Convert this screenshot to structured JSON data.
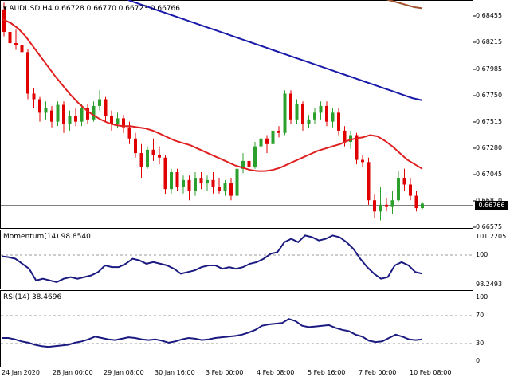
{
  "header": {
    "symbol_line": "AUDUSD,H4  0.66728 0.66770 0.66723 0.66766"
  },
  "price_scale": [
    "0.68455",
    "0.68215",
    "0.67985",
    "0.67750",
    "0.67515",
    "0.67280",
    "0.67045",
    "0.66810",
    "0.66575"
  ],
  "current_price": "0.66766",
  "momentum": {
    "label": "Momentum(14) 98.8540",
    "scale_top": "101.2205",
    "scale_mid": "100",
    "scale_bottom": "98.2493"
  },
  "rsi": {
    "label": "RSI(14) 38.4696",
    "scale_100": "100",
    "scale_70": "70",
    "scale_30": "30",
    "scale_0": "0"
  },
  "x_axis": [
    "24 Jan 2020",
    "28 Jan 00:00",
    "29 Jan 08:00",
    "30 Jan 16:00",
    "3 Feb 00:00",
    "4 Feb 08:00",
    "5 Feb 16:00",
    "7 Feb 00:00",
    "10 Feb 08:00"
  ],
  "colors": {
    "bull": "#2ca02c",
    "bear": "#e00000",
    "ma_fast": "#e02020",
    "ma_slow": "#1a1aaa",
    "ma_long": "#a0522d",
    "indicator": "#1a1a80"
  },
  "chart_data": {
    "type": "candlestick",
    "ylim": [
      0.6656,
      0.6857
    ],
    "candles": [
      {
        "o": 0.685,
        "h": 0.6856,
        "l": 0.6826,
        "c": 0.683
      },
      {
        "o": 0.683,
        "h": 0.6838,
        "l": 0.6812,
        "c": 0.682
      },
      {
        "o": 0.682,
        "h": 0.6832,
        "l": 0.6814,
        "c": 0.6818
      },
      {
        "o": 0.6818,
        "h": 0.6822,
        "l": 0.6805,
        "c": 0.6812
      },
      {
        "o": 0.6812,
        "h": 0.6815,
        "l": 0.677,
        "c": 0.6775
      },
      {
        "o": 0.6775,
        "h": 0.678,
        "l": 0.6762,
        "c": 0.677
      },
      {
        "o": 0.677,
        "h": 0.6772,
        "l": 0.675,
        "c": 0.6758
      },
      {
        "o": 0.6758,
        "h": 0.6768,
        "l": 0.6752,
        "c": 0.6762
      },
      {
        "o": 0.676,
        "h": 0.6764,
        "l": 0.6745,
        "c": 0.675
      },
      {
        "o": 0.675,
        "h": 0.6768,
        "l": 0.6746,
        "c": 0.6765
      },
      {
        "o": 0.6765,
        "h": 0.6768,
        "l": 0.674,
        "c": 0.6748
      },
      {
        "o": 0.6748,
        "h": 0.676,
        "l": 0.6742,
        "c": 0.6755
      },
      {
        "o": 0.6755,
        "h": 0.6762,
        "l": 0.6746,
        "c": 0.675
      },
      {
        "o": 0.675,
        "h": 0.6766,
        "l": 0.6746,
        "c": 0.6762
      },
      {
        "o": 0.6762,
        "h": 0.6766,
        "l": 0.6748,
        "c": 0.6752
      },
      {
        "o": 0.6752,
        "h": 0.6768,
        "l": 0.675,
        "c": 0.6764
      },
      {
        "o": 0.6764,
        "h": 0.6778,
        "l": 0.676,
        "c": 0.677
      },
      {
        "o": 0.677,
        "h": 0.6772,
        "l": 0.675,
        "c": 0.6755
      },
      {
        "o": 0.6755,
        "h": 0.676,
        "l": 0.6742,
        "c": 0.6748
      },
      {
        "o": 0.6748,
        "h": 0.6758,
        "l": 0.6744,
        "c": 0.6753
      },
      {
        "o": 0.6753,
        "h": 0.6756,
        "l": 0.674,
        "c": 0.6745
      },
      {
        "o": 0.6745,
        "h": 0.675,
        "l": 0.673,
        "c": 0.6735
      },
      {
        "o": 0.6735,
        "h": 0.674,
        "l": 0.6718,
        "c": 0.6722
      },
      {
        "o": 0.6722,
        "h": 0.673,
        "l": 0.67,
        "c": 0.671
      },
      {
        "o": 0.671,
        "h": 0.6728,
        "l": 0.6708,
        "c": 0.6725
      },
      {
        "o": 0.6725,
        "h": 0.6735,
        "l": 0.6715,
        "c": 0.672
      },
      {
        "o": 0.672,
        "h": 0.6728,
        "l": 0.6712,
        "c": 0.6718
      },
      {
        "o": 0.6718,
        "h": 0.672,
        "l": 0.6685,
        "c": 0.669
      },
      {
        "o": 0.669,
        "h": 0.6708,
        "l": 0.6686,
        "c": 0.6705
      },
      {
        "o": 0.6705,
        "h": 0.6708,
        "l": 0.6688,
        "c": 0.6692
      },
      {
        "o": 0.6692,
        "h": 0.6702,
        "l": 0.6686,
        "c": 0.6698
      },
      {
        "o": 0.6698,
        "h": 0.6702,
        "l": 0.668,
        "c": 0.6688
      },
      {
        "o": 0.6688,
        "h": 0.6705,
        "l": 0.6684,
        "c": 0.67
      },
      {
        "o": 0.67,
        "h": 0.6705,
        "l": 0.669,
        "c": 0.6695
      },
      {
        "o": 0.6695,
        "h": 0.6702,
        "l": 0.6688,
        "c": 0.6698
      },
      {
        "o": 0.6698,
        "h": 0.6705,
        "l": 0.6686,
        "c": 0.6692
      },
      {
        "o": 0.6692,
        "h": 0.67,
        "l": 0.6686,
        "c": 0.6688
      },
      {
        "o": 0.6688,
        "h": 0.6698,
        "l": 0.6684,
        "c": 0.6695
      },
      {
        "o": 0.6695,
        "h": 0.67,
        "l": 0.668,
        "c": 0.6684
      },
      {
        "o": 0.6684,
        "h": 0.6712,
        "l": 0.6682,
        "c": 0.6708
      },
      {
        "o": 0.6708,
        "h": 0.6722,
        "l": 0.6704,
        "c": 0.6715
      },
      {
        "o": 0.6715,
        "h": 0.6722,
        "l": 0.6706,
        "c": 0.671
      },
      {
        "o": 0.671,
        "h": 0.6732,
        "l": 0.6708,
        "c": 0.6728
      },
      {
        "o": 0.6728,
        "h": 0.674,
        "l": 0.6724,
        "c": 0.6735
      },
      {
        "o": 0.6735,
        "h": 0.6738,
        "l": 0.6722,
        "c": 0.673
      },
      {
        "o": 0.673,
        "h": 0.6745,
        "l": 0.6728,
        "c": 0.6742
      },
      {
        "o": 0.6742,
        "h": 0.6746,
        "l": 0.6736,
        "c": 0.674
      },
      {
        "o": 0.674,
        "h": 0.6778,
        "l": 0.6738,
        "c": 0.6775
      },
      {
        "o": 0.6775,
        "h": 0.6778,
        "l": 0.6748,
        "c": 0.6752
      },
      {
        "o": 0.6752,
        "h": 0.677,
        "l": 0.6748,
        "c": 0.6766
      },
      {
        "o": 0.6766,
        "h": 0.6768,
        "l": 0.6742,
        "c": 0.6748
      },
      {
        "o": 0.6748,
        "h": 0.6756,
        "l": 0.6744,
        "c": 0.6752
      },
      {
        "o": 0.6752,
        "h": 0.6762,
        "l": 0.6748,
        "c": 0.6758
      },
      {
        "o": 0.6758,
        "h": 0.6768,
        "l": 0.6752,
        "c": 0.6764
      },
      {
        "o": 0.6764,
        "h": 0.6768,
        "l": 0.6746,
        "c": 0.675
      },
      {
        "o": 0.675,
        "h": 0.6762,
        "l": 0.6745,
        "c": 0.6758
      },
      {
        "o": 0.6758,
        "h": 0.6762,
        "l": 0.6738,
        "c": 0.6742
      },
      {
        "o": 0.6742,
        "h": 0.6746,
        "l": 0.6728,
        "c": 0.6732
      },
      {
        "o": 0.6732,
        "h": 0.6742,
        "l": 0.6726,
        "c": 0.6738
      },
      {
        "o": 0.6738,
        "h": 0.674,
        "l": 0.6712,
        "c": 0.6716
      },
      {
        "o": 0.6716,
        "h": 0.672,
        "l": 0.671,
        "c": 0.6714
      },
      {
        "o": 0.6714,
        "h": 0.6718,
        "l": 0.6676,
        "c": 0.668
      },
      {
        "o": 0.668,
        "h": 0.6685,
        "l": 0.6664,
        "c": 0.667
      },
      {
        "o": 0.667,
        "h": 0.6692,
        "l": 0.6662,
        "c": 0.6676
      },
      {
        "o": 0.6676,
        "h": 0.6682,
        "l": 0.667,
        "c": 0.6674
      },
      {
        "o": 0.6674,
        "h": 0.6688,
        "l": 0.6668,
        "c": 0.668
      },
      {
        "o": 0.668,
        "h": 0.6706,
        "l": 0.6678,
        "c": 0.67
      },
      {
        "o": 0.67,
        "h": 0.6708,
        "l": 0.6688,
        "c": 0.6694
      },
      {
        "o": 0.6694,
        "h": 0.67,
        "l": 0.668,
        "c": 0.6684
      },
      {
        "o": 0.6684,
        "h": 0.6688,
        "l": 0.667,
        "c": 0.6673
      },
      {
        "o": 0.6673,
        "h": 0.6678,
        "l": 0.6672,
        "c": 0.6677
      }
    ],
    "ma_fast": [
      0.6841,
      0.6838,
      0.6833,
      0.6826,
      0.6817,
      0.6808,
      0.6799,
      0.679,
      0.6782,
      0.6774,
      0.6767,
      0.6761,
      0.6756,
      0.6752,
      0.6749,
      0.6747,
      0.6746,
      0.6746,
      0.6745,
      0.6744,
      0.6742,
      0.6739,
      0.6736,
      0.6733,
      0.6731,
      0.6729,
      0.6726,
      0.6723,
      0.672,
      0.6717,
      0.6714,
      0.6711,
      0.6709,
      0.6707,
      0.6706,
      0.6706,
      0.6707,
      0.6709,
      0.6712,
      0.6715,
      0.6718,
      0.6721,
      0.6724,
      0.6726,
      0.6728,
      0.673,
      0.6733,
      0.6735,
      0.6736,
      0.6738,
      0.6737,
      0.6733,
      0.6728,
      0.6722,
      0.6716,
      0.6712,
      0.6708
    ],
    "ma_slow": [
      0.6863,
      0.6858,
      0.6855,
      0.6852,
      0.6849,
      0.6846,
      0.6843,
      0.684,
      0.6837,
      0.6834,
      0.6831,
      0.6828,
      0.6825,
      0.6822,
      0.6819,
      0.6816,
      0.6813,
      0.681,
      0.6807,
      0.6804,
      0.6801,
      0.6798,
      0.6795,
      0.6792,
      0.6789,
      0.6786,
      0.6783,
      0.678,
      0.6777,
      0.6774,
      0.6771,
      0.6769
    ],
    "ma_long": [
      0.686,
      0.6858,
      0.6856,
      0.6854,
      0.6852,
      0.6851
    ],
    "momentum_values": [
      99.95,
      99.9,
      99.8,
      99.5,
      99.2,
      98.5,
      98.6,
      98.5,
      98.4,
      98.6,
      98.7,
      98.6,
      98.7,
      98.8,
      99.0,
      99.4,
      99.3,
      99.3,
      99.5,
      99.8,
      99.7,
      99.5,
      99.6,
      99.5,
      99.4,
      99.2,
      98.9,
      99.0,
      99.1,
      99.3,
      99.4,
      99.4,
      99.2,
      99.3,
      99.2,
      99.3,
      99.5,
      99.6,
      99.8,
      100.1,
      100.2,
      100.8,
      101.0,
      100.8,
      101.2,
      101.1,
      100.9,
      101.0,
      101.2,
      101.1,
      100.8,
      100.4,
      99.8,
      99.3,
      98.9,
      98.6,
      98.7,
      99.4,
      99.6,
      99.4,
      99.0,
      98.9
    ],
    "rsi_values": [
      40,
      40,
      38,
      35,
      33,
      30,
      28,
      27,
      28,
      29,
      30,
      33,
      35,
      38,
      42,
      40,
      38,
      37,
      39,
      41,
      40,
      38,
      37,
      38,
      36,
      33,
      35,
      38,
      40,
      39,
      37,
      38,
      40,
      41,
      42,
      43,
      45,
      48,
      52,
      58,
      60,
      61,
      62,
      68,
      65,
      58,
      56,
      57,
      58,
      59,
      55,
      52,
      50,
      45,
      42,
      36,
      34,
      35,
      40,
      45,
      42,
      38,
      37,
      38
    ]
  }
}
